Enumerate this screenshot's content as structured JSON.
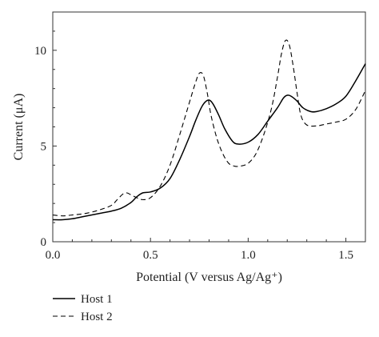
{
  "chart_data": {
    "type": "line",
    "xlabel": "Potential (V versus Ag/Ag⁺)",
    "ylabel": "Current (μA)",
    "xlim": [
      0.0,
      1.6
    ],
    "ylim": [
      0,
      12
    ],
    "x_ticks": [
      "0.0",
      "0.5",
      "1.0",
      "1.5"
    ],
    "x_tick_values": [
      0.0,
      0.5,
      1.0,
      1.5
    ],
    "y_ticks": [
      "0",
      "5",
      "10"
    ],
    "y_tick_values": [
      0,
      5,
      10
    ],
    "grid": false,
    "legend_position": "bottom-left, below plot",
    "series": [
      {
        "name": "Host 1",
        "line_style": "solid",
        "color": "#000000",
        "x": [
          0.0,
          0.05,
          0.1,
          0.15,
          0.2,
          0.25,
          0.3,
          0.35,
          0.4,
          0.43,
          0.46,
          0.5,
          0.55,
          0.6,
          0.65,
          0.7,
          0.73,
          0.76,
          0.78,
          0.8,
          0.82,
          0.85,
          0.88,
          0.92,
          0.95,
          1.0,
          1.05,
          1.1,
          1.15,
          1.18,
          1.2,
          1.22,
          1.25,
          1.28,
          1.32,
          1.35,
          1.4,
          1.45,
          1.5,
          1.55,
          1.6
        ],
        "y": [
          1.15,
          1.15,
          1.2,
          1.3,
          1.4,
          1.5,
          1.6,
          1.75,
          2.05,
          2.35,
          2.55,
          2.6,
          2.8,
          3.3,
          4.3,
          5.5,
          6.3,
          7.0,
          7.3,
          7.4,
          7.2,
          6.6,
          5.9,
          5.25,
          5.1,
          5.2,
          5.6,
          6.3,
          7.0,
          7.5,
          7.65,
          7.6,
          7.35,
          7.0,
          6.8,
          6.8,
          6.95,
          7.2,
          7.6,
          8.4,
          9.3
        ]
      },
      {
        "name": "Host 2",
        "line_style": "dashed",
        "color": "#000000",
        "x": [
          0.0,
          0.05,
          0.1,
          0.15,
          0.2,
          0.25,
          0.3,
          0.33,
          0.36,
          0.38,
          0.4,
          0.43,
          0.46,
          0.5,
          0.55,
          0.6,
          0.65,
          0.7,
          0.73,
          0.75,
          0.77,
          0.79,
          0.81,
          0.84,
          0.87,
          0.9,
          0.93,
          0.96,
          1.0,
          1.04,
          1.08,
          1.12,
          1.15,
          1.17,
          1.19,
          1.21,
          1.23,
          1.25,
          1.27,
          1.3,
          1.35,
          1.4,
          1.45,
          1.5,
          1.55,
          1.6
        ],
        "y": [
          1.4,
          1.35,
          1.4,
          1.45,
          1.55,
          1.7,
          1.9,
          2.2,
          2.5,
          2.55,
          2.45,
          2.3,
          2.2,
          2.3,
          2.9,
          4.0,
          5.6,
          7.3,
          8.3,
          8.8,
          8.7,
          7.8,
          6.6,
          5.4,
          4.6,
          4.1,
          3.95,
          3.95,
          4.1,
          4.6,
          5.6,
          7.0,
          8.6,
          9.8,
          10.5,
          10.3,
          9.2,
          7.8,
          6.6,
          6.1,
          6.05,
          6.15,
          6.25,
          6.4,
          6.9,
          7.9
        ]
      }
    ]
  }
}
